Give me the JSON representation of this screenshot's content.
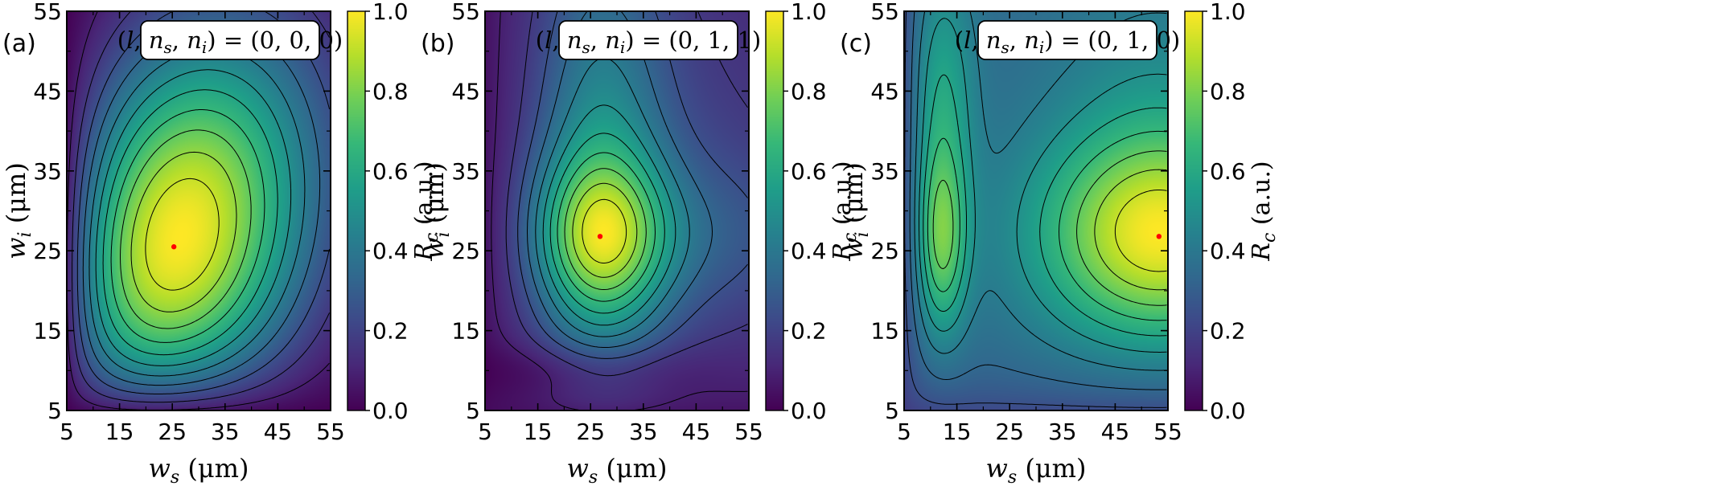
{
  "colors": {
    "colormap": [
      "#440154",
      "#482878",
      "#3e4989",
      "#31688e",
      "#26828e",
      "#1f9e89",
      "#35b779",
      "#6ece58",
      "#b5de2b",
      "#fde725"
    ],
    "contour": "#000000",
    "optimum_marker": "#ff0000"
  },
  "chart_data": [
    {
      "type": "heatmap",
      "panel": "(a)",
      "annotation": "(l, n_s, n_i) = (0, 0, 0)",
      "annotation_display": {
        "open": "(",
        "l": "l",
        "n": "n",
        "s": "s",
        "i": "i",
        "comma": ", ",
        "close_eq": ") = ",
        "values": "(0, 0, 0)"
      },
      "xlabel": {
        "var": "w",
        "sub": "s",
        "unit": " (μm)"
      },
      "ylabel": {
        "var": "w",
        "sub": "i",
        "unit": " (μm)"
      },
      "xlim": [
        5,
        55
      ],
      "ylim": [
        5,
        55
      ],
      "xticks": [
        "5",
        "15",
        "25",
        "35",
        "45",
        "55"
      ],
      "yticks": [
        "5",
        "15",
        "25",
        "35",
        "45",
        "55"
      ],
      "zlim": [
        0,
        1
      ],
      "n_contour_levels": 11,
      "optimum": {
        "x": 25.3,
        "y": 25.5,
        "z": 1.0
      },
      "colorbar": {
        "label": {
          "var": "R",
          "sub": "c",
          "unit": " (a.u.)"
        },
        "ticks": [
          "0.0",
          "0.2",
          "0.4",
          "0.6",
          "0.8",
          "1.0"
        ]
      }
    },
    {
      "type": "heatmap",
      "panel": "(b)",
      "annotation": "(l, n_s, n_i) = (0, 1, 1)",
      "annotation_display": {
        "open": "(",
        "l": "l",
        "n": "n",
        "s": "s",
        "i": "i",
        "comma": ", ",
        "close_eq": ") = ",
        "values": "(0, 1, 1)"
      },
      "xlabel": {
        "var": "w",
        "sub": "s",
        "unit": " (μm)"
      },
      "ylabel": {
        "var": "w",
        "sub": "i",
        "unit": " (μm)"
      },
      "xlim": [
        5,
        55
      ],
      "ylim": [
        5,
        55
      ],
      "xticks": [
        "5",
        "15",
        "25",
        "35",
        "45",
        "55"
      ],
      "yticks": [
        "5",
        "15",
        "25",
        "35",
        "45",
        "55"
      ],
      "zlim": [
        0,
        1
      ],
      "n_contour_levels": 11,
      "optimum": {
        "x": 26.8,
        "y": 26.8,
        "z": 1.0
      },
      "colorbar": {
        "label": {
          "var": "R",
          "sub": "c",
          "unit": " (a.u.)"
        },
        "ticks": [
          "0.0",
          "0.2",
          "0.4",
          "0.6",
          "0.8",
          "1.0"
        ]
      }
    },
    {
      "type": "heatmap",
      "panel": "(c)",
      "annotation": "(l, n_s, n_i) = (0, 1, 0)",
      "annotation_display": {
        "open": "(",
        "l": "l",
        "n": "n",
        "s": "s",
        "i": "i",
        "comma": ", ",
        "close_eq": ") = ",
        "values": "(0, 1, 0)"
      },
      "xlabel": {
        "var": "w",
        "sub": "s",
        "unit": " (μm)"
      },
      "ylabel": {
        "var": "w",
        "sub": "i",
        "unit": " (μm)"
      },
      "xlim": [
        5,
        55
      ],
      "ylim": [
        5,
        55
      ],
      "xticks": [
        "5",
        "15",
        "25",
        "35",
        "45",
        "55"
      ],
      "yticks": [
        "5",
        "15",
        "25",
        "35",
        "45",
        "55"
      ],
      "zlim": [
        0,
        1
      ],
      "n_contour_levels": 11,
      "secondary_peak": {
        "x": 11.8,
        "y": 25.5,
        "z": 0.8
      },
      "optimum": {
        "x": 53.3,
        "y": 26.8,
        "z": 1.0
      },
      "colorbar": {
        "label": {
          "var": "R",
          "sub": "c",
          "unit": " (a.u.)"
        },
        "ticks": [
          "0.0",
          "0.2",
          "0.4",
          "0.6",
          "0.8",
          "1.0"
        ]
      }
    }
  ]
}
